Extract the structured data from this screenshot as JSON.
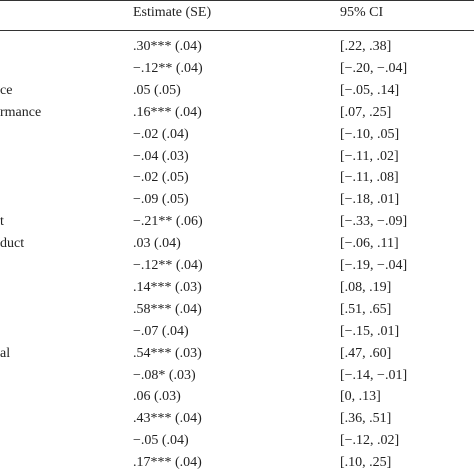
{
  "table": {
    "header": [
      "Estimate (SE)",
      "95% CI"
    ],
    "rows": [
      {
        "estimate": ".30*** (.04)",
        "ci": "[.22, .38]"
      },
      {
        "estimate": "−.12** (.04)",
        "ci": "[−.20, −.04]"
      },
      {
        "label": "ce",
        "estimate": ".05 (.05)",
        "ci": "[−.05, .14]"
      },
      {
        "label": "rmance",
        "estimate": ".16*** (.04)",
        "ci": "[.07, .25]"
      },
      {
        "estimate": "−.02 (.04)",
        "ci": "[−.10, .05]"
      },
      {
        "estimate": "−.04 (.03)",
        "ci": "[−.11, .02]"
      },
      {
        "estimate": "−.02 (.05)",
        "ci": "[−.11, .08]"
      },
      {
        "estimate": "−.09 (.05)",
        "ci": "[−.18, .01]"
      },
      {
        "label": "t",
        "estimate": "−.21** (.06)",
        "ci": "[−.33, −.09]"
      },
      {
        "label": "duct",
        "estimate": ".03 (.04)",
        "ci": "[−.06, .11]"
      },
      {
        "estimate": "−.12** (.04)",
        "ci": "[−.19, −.04]"
      },
      {
        "estimate": ".14*** (.03)",
        "ci": "[.08, .19]"
      },
      {
        "estimate": ".58*** (.04)",
        "ci": "[.51, .65]"
      },
      {
        "estimate": "−.07 (.04)",
        "ci": "[−.15, .01]"
      },
      {
        "label": "al",
        "estimate": ".54*** (.03)",
        "ci": "[.47, .60]"
      },
      {
        "estimate": "−.08* (.03)",
        "ci": "[−.14, −.01]"
      },
      {
        "estimate": ".06 (.03)",
        "ci": "[0, .13]"
      },
      {
        "estimate": ".43*** (.04)",
        "ci": "[.36, .51]"
      },
      {
        "estimate": "−.05 (.04)",
        "ci": "[−.12, .02]"
      },
      {
        "estimate": ".17*** (.04)",
        "ci": "[.10, .25]"
      }
    ]
  }
}
